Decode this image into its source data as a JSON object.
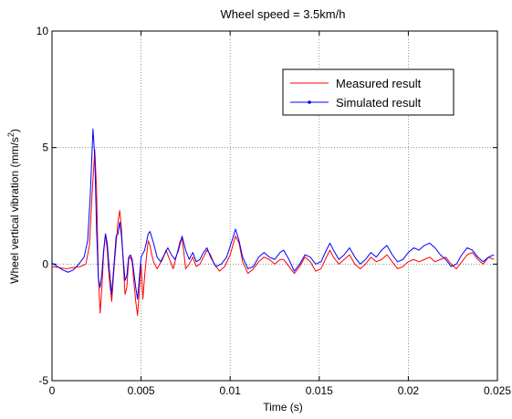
{
  "chart_data": {
    "type": "line",
    "title": "Wheel speed = 3.5km/h",
    "xlabel": "Time (s)",
    "ylabel": "Wheel vertical vibration (mm/s",
    "ylabel_sup": "2",
    "ylabel_end": ")",
    "xlim": [
      0,
      0.025
    ],
    "ylim": [
      -5,
      10
    ],
    "x_ticks": [
      0,
      0.005,
      0.01,
      0.015,
      0.02,
      0.025
    ],
    "x_tick_labels": [
      "0",
      "0.005",
      "0.01",
      "0.015",
      "0.02",
      "0.025"
    ],
    "y_ticks": [
      -5,
      0,
      5,
      10
    ],
    "y_tick_labels": [
      "-5",
      "0",
      "5",
      "10"
    ],
    "grid": true,
    "legend_position": "top-right",
    "series": [
      {
        "name": "Measured result",
        "color": "#ff0000",
        "marker": "none",
        "points": [
          [
            0,
            -0.1
          ],
          [
            0.0004,
            -0.15
          ],
          [
            0.0008,
            -0.2
          ],
          [
            0.0012,
            -0.15
          ],
          [
            0.0016,
            -0.1
          ],
          [
            0.0019,
            0.0
          ],
          [
            0.0021,
            0.8
          ],
          [
            0.00225,
            3.0
          ],
          [
            0.0024,
            4.9
          ],
          [
            0.0025,
            3.2
          ],
          [
            0.0026,
            -0.5
          ],
          [
            0.0027,
            -2.1
          ],
          [
            0.0028,
            -1.0
          ],
          [
            0.0029,
            0.5
          ],
          [
            0.003,
            1.3
          ],
          [
            0.0031,
            0.6
          ],
          [
            0.0032,
            -0.5
          ],
          [
            0.00335,
            -1.6
          ],
          [
            0.0035,
            0.0
          ],
          [
            0.0037,
            1.8
          ],
          [
            0.0038,
            2.3
          ],
          [
            0.0039,
            1.5
          ],
          [
            0.004,
            0.0
          ],
          [
            0.0041,
            -1.3
          ],
          [
            0.0042,
            -1.0
          ],
          [
            0.0043,
            0.2
          ],
          [
            0.0044,
            0.3
          ],
          [
            0.0045,
            0.1
          ],
          [
            0.0046,
            -0.8
          ],
          [
            0.0047,
            -1.6
          ],
          [
            0.0048,
            -2.2
          ],
          [
            0.0049,
            -1.2
          ],
          [
            0.005,
            0.0
          ],
          [
            0.0051,
            -1.5
          ],
          [
            0.0052,
            -0.5
          ],
          [
            0.0053,
            0.3
          ],
          [
            0.0054,
            1.0
          ],
          [
            0.0055,
            0.8
          ],
          [
            0.0056,
            0.4
          ],
          [
            0.0057,
            0.1
          ],
          [
            0.0059,
            -0.2
          ],
          [
            0.0062,
            0.2
          ],
          [
            0.0064,
            0.6
          ],
          [
            0.0066,
            0.2
          ],
          [
            0.0068,
            -0.2
          ],
          [
            0.007,
            0.4
          ],
          [
            0.0072,
            1.0
          ],
          [
            0.0073,
            1.1
          ],
          [
            0.0074,
            0.5
          ],
          [
            0.0075,
            -0.2
          ],
          [
            0.0077,
            0.0
          ],
          [
            0.0079,
            0.3
          ],
          [
            0.0081,
            -0.1
          ],
          [
            0.0083,
            0.0
          ],
          [
            0.0085,
            0.3
          ],
          [
            0.0087,
            0.6
          ],
          [
            0.0089,
            0.4
          ],
          [
            0.0091,
            0.0
          ],
          [
            0.0094,
            -0.3
          ],
          [
            0.0097,
            -0.1
          ],
          [
            0.01,
            0.4
          ],
          [
            0.0103,
            1.2
          ],
          [
            0.0105,
            0.9
          ],
          [
            0.0107,
            0.1
          ],
          [
            0.011,
            -0.4
          ],
          [
            0.0113,
            -0.2
          ],
          [
            0.0116,
            0.1
          ],
          [
            0.0119,
            0.3
          ],
          [
            0.0122,
            0.2
          ],
          [
            0.0125,
            0.0
          ],
          [
            0.0128,
            0.2
          ],
          [
            0.013,
            0.2
          ],
          [
            0.0133,
            -0.1
          ],
          [
            0.0136,
            -0.4
          ],
          [
            0.0139,
            -0.1
          ],
          [
            0.0142,
            0.3
          ],
          [
            0.0145,
            0.1
          ],
          [
            0.0148,
            -0.3
          ],
          [
            0.0151,
            -0.2
          ],
          [
            0.0154,
            0.3
          ],
          [
            0.0156,
            0.6
          ],
          [
            0.0158,
            0.3
          ],
          [
            0.0161,
            0.0
          ],
          [
            0.0164,
            0.2
          ],
          [
            0.0167,
            0.4
          ],
          [
            0.017,
            0.0
          ],
          [
            0.0173,
            -0.2
          ],
          [
            0.0176,
            0.0
          ],
          [
            0.0179,
            0.3
          ],
          [
            0.0182,
            0.1
          ],
          [
            0.0185,
            0.2
          ],
          [
            0.0188,
            0.4
          ],
          [
            0.0191,
            0.1
          ],
          [
            0.0194,
            -0.2
          ],
          [
            0.0197,
            -0.1
          ],
          [
            0.02,
            0.1
          ],
          [
            0.0203,
            0.2
          ],
          [
            0.0206,
            0.1
          ],
          [
            0.0209,
            0.2
          ],
          [
            0.0212,
            0.3
          ],
          [
            0.0215,
            0.1
          ],
          [
            0.0218,
            0.2
          ],
          [
            0.0221,
            0.3
          ],
          [
            0.0224,
            0.0
          ],
          [
            0.0227,
            -0.2
          ],
          [
            0.023,
            0.1
          ],
          [
            0.0233,
            0.4
          ],
          [
            0.0236,
            0.5
          ],
          [
            0.0239,
            0.2
          ],
          [
            0.0242,
            0.0
          ],
          [
            0.0245,
            0.3
          ],
          [
            0.0248,
            0.2
          ]
        ]
      },
      {
        "name": "Simulated result",
        "color": "#0000ff",
        "marker": "dot",
        "points": [
          [
            0,
            0.05
          ],
          [
            0.0003,
            -0.1
          ],
          [
            0.0006,
            -0.25
          ],
          [
            0.0009,
            -0.35
          ],
          [
            0.0012,
            -0.25
          ],
          [
            0.0015,
            0.0
          ],
          [
            0.0018,
            0.3
          ],
          [
            0.002,
            1.0
          ],
          [
            0.00215,
            3.0
          ],
          [
            0.0023,
            5.8
          ],
          [
            0.0024,
            4.6
          ],
          [
            0.0025,
            1.5
          ],
          [
            0.0026,
            -0.6
          ],
          [
            0.0027,
            -1.0
          ],
          [
            0.0028,
            -0.4
          ],
          [
            0.0029,
            0.6
          ],
          [
            0.003,
            1.3
          ],
          [
            0.0031,
            0.9
          ],
          [
            0.0032,
            -0.1
          ],
          [
            0.00335,
            -1.3
          ],
          [
            0.0035,
            0.2
          ],
          [
            0.0036,
            1.2
          ],
          [
            0.0037,
            1.3
          ],
          [
            0.0038,
            1.8
          ],
          [
            0.0039,
            1.2
          ],
          [
            0.004,
            0.2
          ],
          [
            0.0041,
            -0.7
          ],
          [
            0.0042,
            -0.5
          ],
          [
            0.0043,
            0.3
          ],
          [
            0.0044,
            0.4
          ],
          [
            0.0045,
            0.2
          ],
          [
            0.0046,
            -0.4
          ],
          [
            0.0047,
            -1.0
          ],
          [
            0.0048,
            -1.5
          ],
          [
            0.0049,
            -0.6
          ],
          [
            0.005,
            0.3
          ],
          [
            0.0052,
            0.6
          ],
          [
            0.0054,
            1.3
          ],
          [
            0.0055,
            1.4
          ],
          [
            0.0057,
            0.9
          ],
          [
            0.0059,
            0.3
          ],
          [
            0.0061,
            0.1
          ],
          [
            0.0063,
            0.4
          ],
          [
            0.0065,
            0.7
          ],
          [
            0.0067,
            0.4
          ],
          [
            0.0069,
            0.2
          ],
          [
            0.0071,
            0.6
          ],
          [
            0.0073,
            1.2
          ],
          [
            0.0075,
            0.6
          ],
          [
            0.0077,
            0.2
          ],
          [
            0.0079,
            0.5
          ],
          [
            0.0081,
            0.1
          ],
          [
            0.0083,
            0.2
          ],
          [
            0.0085,
            0.5
          ],
          [
            0.0087,
            0.7
          ],
          [
            0.0089,
            0.3
          ],
          [
            0.0092,
            -0.1
          ],
          [
            0.0095,
            0.0
          ],
          [
            0.0098,
            0.3
          ],
          [
            0.0101,
            1.0
          ],
          [
            0.0103,
            1.5
          ],
          [
            0.0105,
            1.0
          ],
          [
            0.0107,
            0.3
          ],
          [
            0.011,
            -0.2
          ],
          [
            0.0113,
            -0.1
          ],
          [
            0.0116,
            0.3
          ],
          [
            0.0119,
            0.5
          ],
          [
            0.0122,
            0.3
          ],
          [
            0.0125,
            0.2
          ],
          [
            0.0128,
            0.5
          ],
          [
            0.013,
            0.6
          ],
          [
            0.0133,
            0.2
          ],
          [
            0.0136,
            -0.3
          ],
          [
            0.0139,
            0.0
          ],
          [
            0.0142,
            0.4
          ],
          [
            0.0145,
            0.3
          ],
          [
            0.0148,
            0.0
          ],
          [
            0.0151,
            0.1
          ],
          [
            0.0154,
            0.6
          ],
          [
            0.0156,
            0.9
          ],
          [
            0.0158,
            0.6
          ],
          [
            0.0161,
            0.2
          ],
          [
            0.0164,
            0.4
          ],
          [
            0.0167,
            0.7
          ],
          [
            0.017,
            0.3
          ],
          [
            0.0173,
            0.0
          ],
          [
            0.0176,
            0.2
          ],
          [
            0.0179,
            0.5
          ],
          [
            0.0182,
            0.3
          ],
          [
            0.0185,
            0.6
          ],
          [
            0.0188,
            0.8
          ],
          [
            0.0191,
            0.4
          ],
          [
            0.0194,
            0.1
          ],
          [
            0.0197,
            0.2
          ],
          [
            0.02,
            0.5
          ],
          [
            0.0203,
            0.7
          ],
          [
            0.0206,
            0.6
          ],
          [
            0.0209,
            0.8
          ],
          [
            0.0212,
            0.9
          ],
          [
            0.0215,
            0.7
          ],
          [
            0.0218,
            0.4
          ],
          [
            0.0221,
            0.2
          ],
          [
            0.0224,
            -0.1
          ],
          [
            0.0227,
            0.0
          ],
          [
            0.023,
            0.4
          ],
          [
            0.0233,
            0.7
          ],
          [
            0.0236,
            0.6
          ],
          [
            0.0239,
            0.3
          ],
          [
            0.0242,
            0.1
          ],
          [
            0.0245,
            0.3
          ],
          [
            0.0248,
            0.4
          ]
        ]
      }
    ]
  }
}
